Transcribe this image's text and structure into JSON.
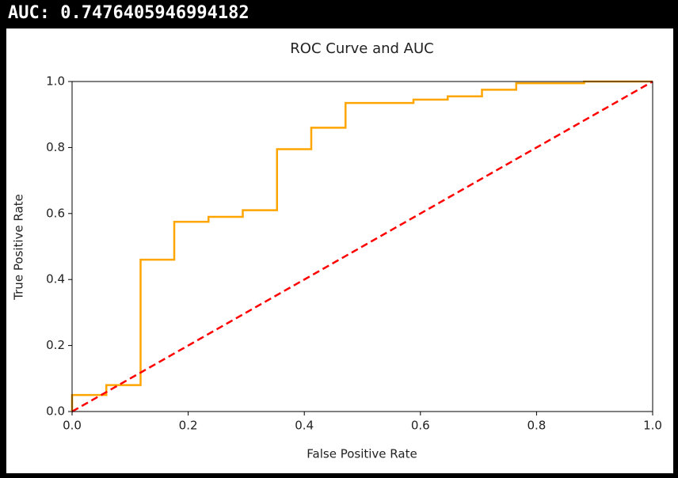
{
  "output_text": "AUC: 0.7476405946994182",
  "chart_data": {
    "type": "line",
    "title": "ROC Curve and AUC",
    "x_label": "False Positive Rate",
    "y_label": "True Positive Rate",
    "xlim": [
      0,
      1
    ],
    "ylim": [
      0,
      1
    ],
    "xticks": [
      {
        "value": 0,
        "label": "0.0"
      },
      0.2,
      0.4,
      0.6,
      0.8,
      {
        "value": 1,
        "label": "1.0"
      }
    ],
    "yticks": [
      {
        "value": 0,
        "label": "0.0"
      },
      0.2,
      0.4,
      0.6,
      0.8,
      {
        "value": 1,
        "label": "1.0"
      }
    ],
    "grid": false,
    "series": [
      {
        "color": "#ffa500",
        "dash": false,
        "x": [
          0,
          0,
          0.059,
          0.059,
          0.118,
          0.118,
          0.176,
          0.176,
          0.235,
          0.235,
          0.294,
          0.294,
          0.353,
          0.353,
          0.412,
          0.412,
          0.471,
          0.471,
          0.588,
          0.588,
          0.647,
          0.647,
          0.706,
          0.706,
          0.765,
          0.765,
          0.882,
          0.882,
          1
        ],
        "values": [
          0,
          0.05,
          0.05,
          0.08,
          0.08,
          0.46,
          0.46,
          0.575,
          0.575,
          0.59,
          0.59,
          0.61,
          0.61,
          0.795,
          0.795,
          0.86,
          0.86,
          0.935,
          0.935,
          0.945,
          0.945,
          0.955,
          0.955,
          0.975,
          0.975,
          0.995,
          0.995,
          1,
          1
        ]
      },
      {
        "color": "#ff0000",
        "dash": true,
        "x": [
          0,
          1
        ],
        "values": [
          0,
          1
        ]
      }
    ]
  }
}
